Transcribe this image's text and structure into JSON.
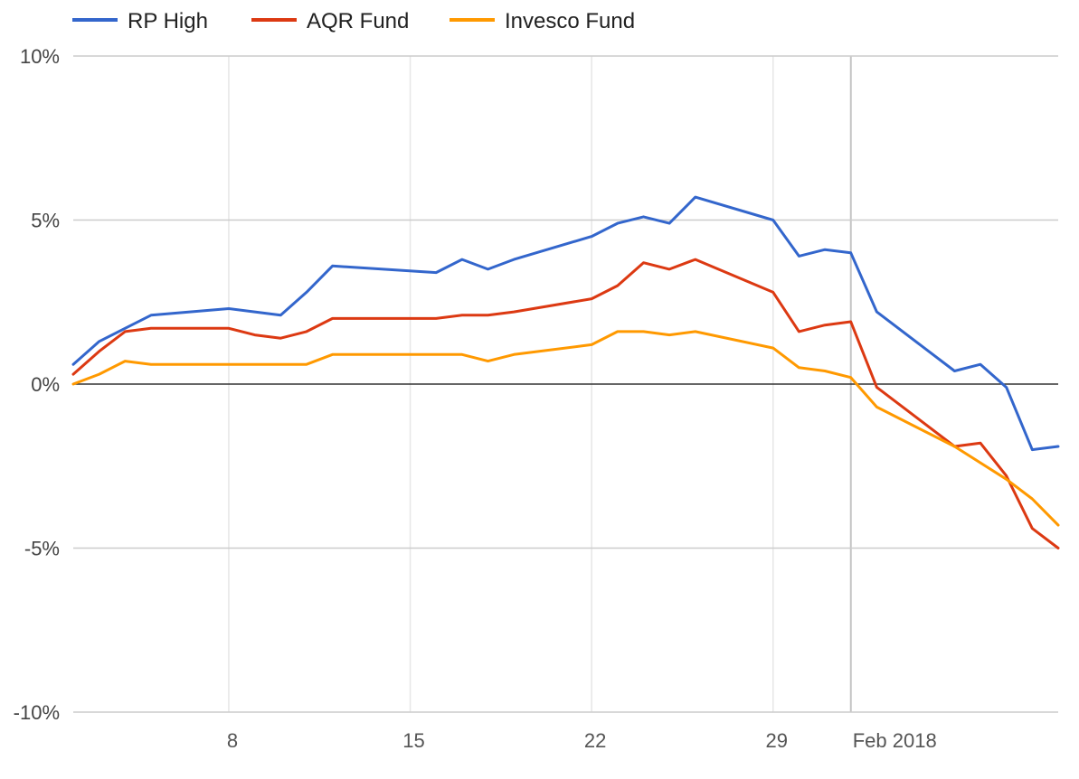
{
  "chart_data": {
    "type": "line",
    "title": "",
    "xlabel": "",
    "ylabel": "",
    "ylim": [
      -10,
      10
    ],
    "y_ticks": [
      "10%",
      "5%",
      "0%",
      "-5%",
      "-10%"
    ],
    "y_tick_values": [
      10,
      5,
      0,
      -5,
      -10
    ],
    "x_ticks": [
      "8",
      "15",
      "22",
      "29",
      "Feb 2018"
    ],
    "x_tick_days": [
      8,
      15,
      22,
      29,
      32
    ],
    "xlim_days": [
      2,
      40
    ],
    "legend_position": "top-left",
    "grid": true,
    "x_days": [
      2,
      3,
      4,
      5,
      8,
      9,
      10,
      11,
      12,
      16,
      17,
      18,
      19,
      22,
      23,
      24,
      25,
      26,
      29,
      30,
      31,
      32,
      33,
      36,
      37,
      38,
      39,
      40
    ],
    "series": [
      {
        "name": "RP High",
        "color": "#3366cc",
        "values": [
          0.6,
          1.3,
          1.7,
          2.1,
          2.3,
          2.2,
          2.1,
          2.8,
          3.6,
          3.4,
          3.8,
          3.5,
          3.8,
          4.5,
          4.9,
          5.1,
          4.9,
          5.7,
          5.0,
          3.9,
          4.1,
          4.0,
          2.2,
          0.4,
          0.6,
          -0.1,
          -2.0,
          -1.9
        ]
      },
      {
        "name": "AQR Fund",
        "color": "#dc3912",
        "values": [
          0.3,
          1.0,
          1.6,
          1.7,
          1.7,
          1.5,
          1.4,
          1.6,
          2.0,
          2.0,
          2.1,
          2.1,
          2.2,
          2.6,
          3.0,
          3.7,
          3.5,
          3.8,
          2.8,
          1.6,
          1.8,
          1.9,
          -0.1,
          -1.9,
          -1.8,
          -2.8,
          -4.4,
          -5.0
        ]
      },
      {
        "name": "Invesco Fund",
        "color": "#ff9900",
        "values": [
          0.0,
          0.3,
          0.7,
          0.6,
          0.6,
          0.6,
          0.6,
          0.6,
          0.9,
          0.9,
          0.9,
          0.7,
          0.9,
          1.2,
          1.6,
          1.6,
          1.5,
          1.6,
          1.1,
          0.5,
          0.4,
          0.2,
          -0.7,
          -1.9,
          -2.4,
          -2.9,
          -3.5,
          -4.3
        ]
      }
    ]
  }
}
